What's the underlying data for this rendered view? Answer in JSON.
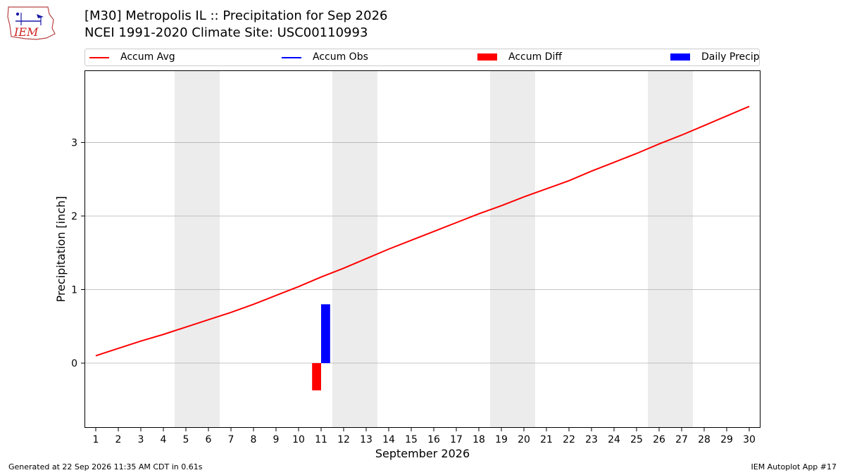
{
  "header": {
    "title_line1": "[M30] Metropolis  IL :: Precipitation for Sep 2026",
    "title_line2": "NCEI 1991-2020 Climate Site: USC00110993",
    "logo_text": "IEM"
  },
  "legend": {
    "items": [
      {
        "label": "Accum Avg",
        "kind": "line",
        "color": "#ff0000"
      },
      {
        "label": "Accum Obs",
        "kind": "line",
        "color": "#0000ff"
      },
      {
        "label": "Accum Diff",
        "kind": "patch",
        "color": "#ff0000"
      },
      {
        "label": "Daily Precip",
        "kind": "patch",
        "color": "#0000ff"
      }
    ]
  },
  "chart_data": {
    "type": "line",
    "title": "[M30] Metropolis  IL :: Precipitation for Sep 2026",
    "subtitle": "NCEI 1991-2020 Climate Site: USC00110993",
    "xlabel": "September 2026",
    "ylabel": "Precipitation [inch]",
    "x": [
      1,
      2,
      3,
      4,
      5,
      6,
      7,
      8,
      9,
      10,
      11,
      12,
      13,
      14,
      15,
      16,
      17,
      18,
      19,
      20,
      21,
      22,
      23,
      24,
      25,
      26,
      27,
      28,
      29,
      30
    ],
    "xlim": [
      0.5,
      30.5
    ],
    "ylim": [
      -0.88,
      3.98
    ],
    "yticks": [
      0,
      1,
      2,
      3
    ],
    "grid": "horizontal",
    "weekend_days": [
      5,
      6,
      12,
      13,
      19,
      20,
      26,
      27
    ],
    "weekend_color": "#ececec",
    "series": [
      {
        "name": "Accum Avg",
        "kind": "line",
        "color": "#ff0000",
        "values": [
          0.1,
          0.2,
          0.3,
          0.39,
          0.49,
          0.59,
          0.69,
          0.8,
          0.92,
          1.04,
          1.17,
          1.29,
          1.42,
          1.55,
          1.67,
          1.79,
          1.91,
          2.03,
          2.14,
          2.26,
          2.37,
          2.48,
          2.61,
          2.73,
          2.85,
          2.98,
          3.1,
          3.23,
          3.36,
          3.49
        ]
      },
      {
        "name": "Accum Diff",
        "kind": "bar",
        "color": "#ff0000",
        "offset": -0.2,
        "points": [
          {
            "x": 11,
            "value": -0.37
          }
        ]
      },
      {
        "name": "Daily Precip",
        "kind": "bar",
        "color": "#0000ff",
        "offset": 0.2,
        "points": [
          {
            "x": 11,
            "value": 0.8
          }
        ]
      }
    ]
  },
  "footer": {
    "left": "Generated at 22 Sep 2026 11:35 AM CDT in 0.61s",
    "right": "IEM Autoplot App #17"
  }
}
